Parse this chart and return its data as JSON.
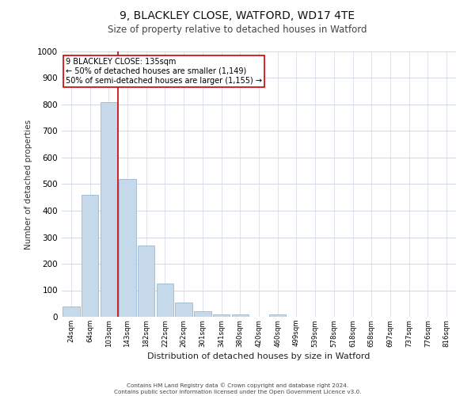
{
  "title1": "9, BLACKLEY CLOSE, WATFORD, WD17 4TE",
  "title2": "Size of property relative to detached houses in Watford",
  "xlabel": "Distribution of detached houses by size in Watford",
  "ylabel": "Number of detached properties",
  "categories": [
    "24sqm",
    "64sqm",
    "103sqm",
    "143sqm",
    "182sqm",
    "222sqm",
    "262sqm",
    "301sqm",
    "341sqm",
    "380sqm",
    "420sqm",
    "460sqm",
    "499sqm",
    "539sqm",
    "578sqm",
    "618sqm",
    "658sqm",
    "697sqm",
    "737sqm",
    "776sqm",
    "816sqm"
  ],
  "values": [
    40,
    460,
    810,
    520,
    270,
    125,
    55,
    20,
    10,
    10,
    0,
    10,
    0,
    0,
    0,
    0,
    0,
    0,
    0,
    0,
    0
  ],
  "bar_color": "#c6d9ea",
  "bar_edge_color": "#9ab8d0",
  "vline_x_index": 2.5,
  "vline_color": "#cc0000",
  "annotation_text": "9 BLACKLEY CLOSE: 135sqm\n← 50% of detached houses are smaller (1,149)\n50% of semi-detached houses are larger (1,155) →",
  "annotation_box_color": "#ffffff",
  "annotation_box_edge": "#cc0000",
  "ylim": [
    0,
    1000
  ],
  "yticks": [
    0,
    100,
    200,
    300,
    400,
    500,
    600,
    700,
    800,
    900,
    1000
  ],
  "grid_color": "#d0d8e8",
  "background_color": "#ffffff",
  "footer1": "Contains HM Land Registry data © Crown copyright and database right 2024.",
  "footer2": "Contains public sector information licensed under the Open Government Licence v3.0."
}
